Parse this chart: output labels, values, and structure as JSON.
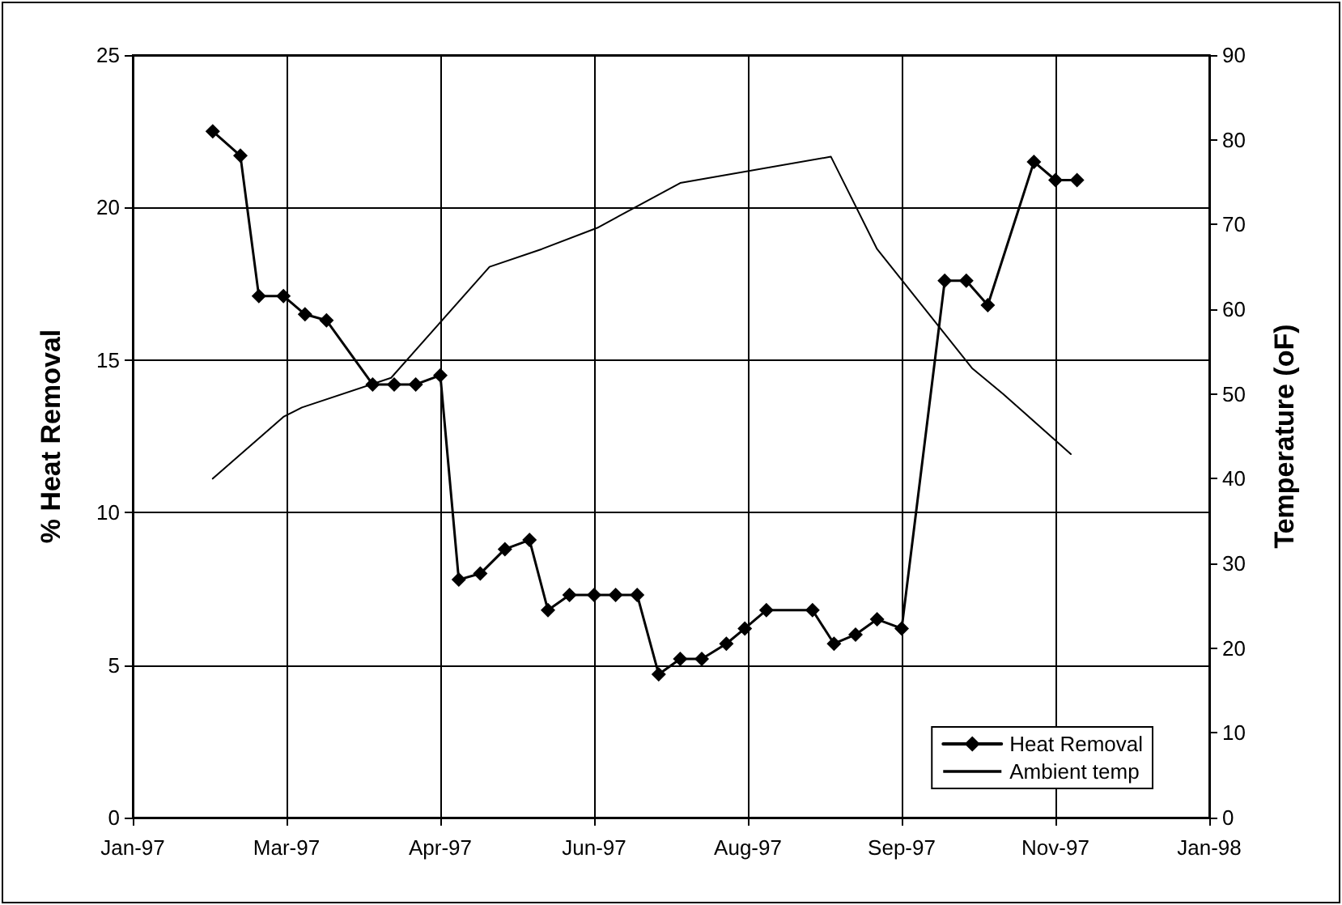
{
  "chart_data": {
    "type": "line",
    "ylabel": "% Heat Removal",
    "y2label": "Temperature (oF)",
    "xlim": [
      "1997-01-20",
      "1998-01-05"
    ],
    "xticks": [
      {
        "value": "1997-01-20",
        "label": "Jan-97"
      },
      {
        "value": "1997-03-11",
        "label": "Mar-97"
      },
      {
        "value": "1997-04-30",
        "label": "Apr-97"
      },
      {
        "value": "1997-06-19",
        "label": "Jun-97"
      },
      {
        "value": "1997-08-08",
        "label": "Aug-97"
      },
      {
        "value": "1997-09-27",
        "label": "Sep-97"
      },
      {
        "value": "1997-11-16",
        "label": "Nov-97"
      },
      {
        "value": "1998-01-05",
        "label": "Jan-98"
      }
    ],
    "ylim": [
      0,
      25
    ],
    "yticks": [
      0,
      5,
      10,
      15,
      20,
      25
    ],
    "y2lim": [
      0,
      90
    ],
    "y2ticks": [
      0,
      10,
      20,
      30,
      40,
      50,
      60,
      70,
      80,
      90
    ],
    "grid": true,
    "legend": "bottom right",
    "marker": "diamond",
    "line_style": "solid",
    "series": [
      {
        "name": "Heat Removal",
        "color": "#000000",
        "x": [
          "1997-02-15",
          "1997-02-24",
          "1997-03-02",
          "1997-03-10",
          "1997-03-17",
          "1997-03-24",
          "1997-04-08",
          "1997-04-15",
          "1997-04-22",
          "1997-04-30",
          "1997-05-06",
          "1997-05-13",
          "1997-05-21",
          "1997-05-29",
          "1997-06-04",
          "1997-06-11",
          "1997-06-19",
          "1997-06-26",
          "1997-07-03",
          "1997-07-10",
          "1997-07-17",
          "1997-07-24",
          "1997-08-01",
          "1997-08-07",
          "1997-08-14",
          "1997-08-29",
          "1997-09-05",
          "1997-09-12",
          "1997-09-19",
          "1997-09-27",
          "1997-10-11",
          "1997-10-18",
          "1997-10-25",
          "1997-11-09",
          "1997-11-16",
          "1997-11-23"
        ],
        "values": [
          22.5,
          21.7,
          17.1,
          17.1,
          16.5,
          16.3,
          14.2,
          14.2,
          14.2,
          14.5,
          7.8,
          8.0,
          8.8,
          9.1,
          6.8,
          7.3,
          7.3,
          7.3,
          7.3,
          4.7,
          5.2,
          5.2,
          5.7,
          6.2,
          6.8,
          6.8,
          5.7,
          6.0,
          6.5,
          6.2,
          17.6,
          17.6,
          16.8,
          21.5,
          20.9,
          20.9
        ]
      },
      {
        "name": "Ambient temp",
        "color": "#000000",
        "axis": "y2",
        "marker": "none",
        "x": [
          "1997-02-15",
          "1997-03-10",
          "1997-03-16",
          "1997-04-14",
          "1997-05-16",
          "1997-06-02",
          "1997-06-20",
          "1997-07-17",
          "1997-09-04",
          "1997-09-19",
          "1997-10-20",
          "1997-10-30",
          "1997-11-21"
        ],
        "values": [
          40.0,
          47.3,
          48.4,
          51.9,
          65.0,
          67.1,
          69.6,
          74.9,
          78.0,
          67.1,
          53.0,
          50.0,
          42.9
        ]
      }
    ]
  }
}
